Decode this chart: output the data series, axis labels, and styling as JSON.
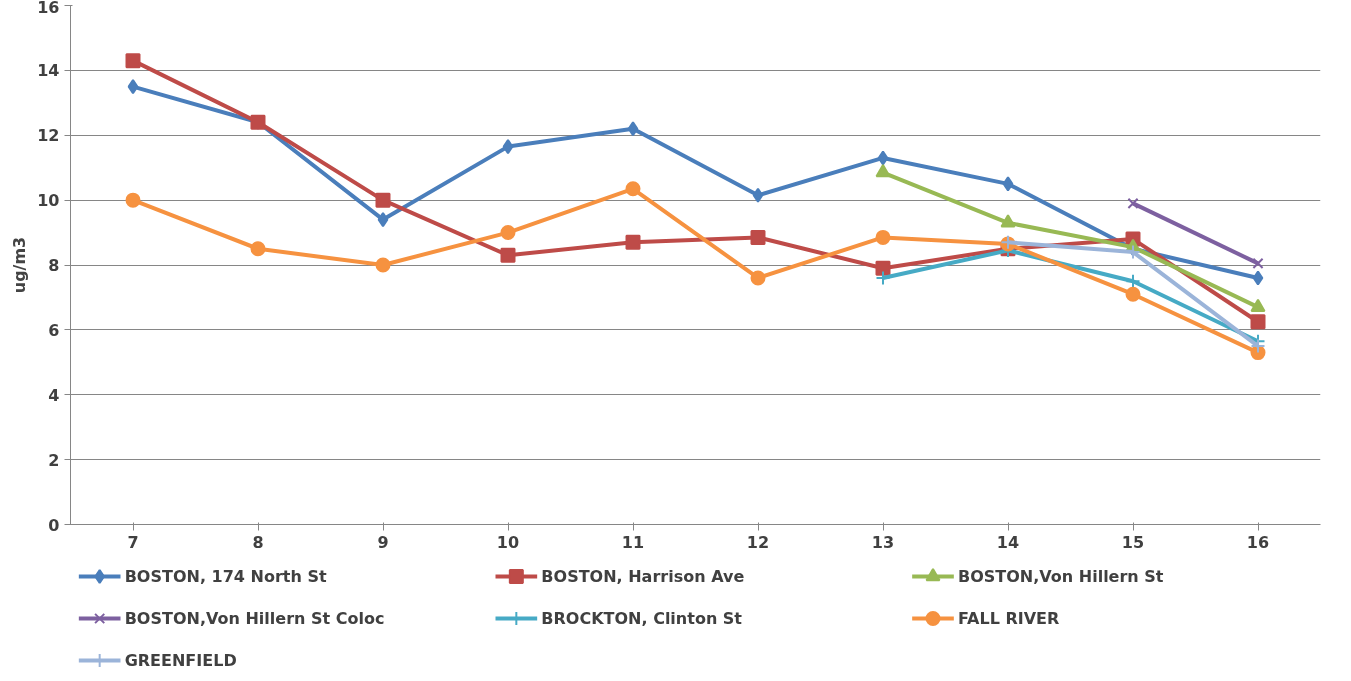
{
  "chart_data": {
    "type": "line",
    "ylabel": "ug/m3",
    "categories": [
      "7",
      "8",
      "9",
      "10",
      "11",
      "12",
      "13",
      "14",
      "15",
      "16"
    ],
    "ylim": [
      0,
      16
    ],
    "yticks": [
      0,
      2,
      4,
      6,
      8,
      10,
      12,
      14,
      16
    ],
    "grid": "y",
    "legend": "bottom",
    "line_style": "solid",
    "series": [
      {
        "name": "BOSTON, 174 North St",
        "color": "#4a7ebb",
        "marker": "diamond",
        "values": [
          13.5,
          12.4,
          9.4,
          11.65,
          12.2,
          10.15,
          11.3,
          10.5,
          8.5,
          7.6
        ]
      },
      {
        "name": "BOSTON, Harrison Ave",
        "color": "#be4b48",
        "marker": "square",
        "values": [
          14.3,
          12.4,
          10.0,
          8.3,
          8.7,
          8.85,
          7.9,
          8.5,
          8.8,
          6.25
        ]
      },
      {
        "name": "BOSTON,Von Hillern St",
        "color": "#98b954",
        "marker": "triangle",
        "values": [
          null,
          null,
          null,
          null,
          null,
          null,
          10.85,
          9.3,
          8.55,
          6.7
        ]
      },
      {
        "name": "BOSTON,Von Hillern St Coloc",
        "color": "#7d60a0",
        "marker": "x",
        "values": [
          null,
          null,
          null,
          null,
          null,
          null,
          null,
          null,
          9.9,
          8.05
        ]
      },
      {
        "name": "BROCKTON, Clinton St",
        "color": "#46aac5",
        "marker": "cross",
        "values": [
          null,
          null,
          null,
          null,
          null,
          null,
          7.6,
          8.45,
          7.5,
          5.65
        ]
      },
      {
        "name": "FALL RIVER",
        "color": "#f69240",
        "marker": "circle",
        "values": [
          10.0,
          8.5,
          8.0,
          9.0,
          10.35,
          7.6,
          8.85,
          8.65,
          7.1,
          5.3
        ]
      },
      {
        "name": "GREENFIELD",
        "color": "#9bb4d9",
        "marker": "cross",
        "values": [
          null,
          null,
          null,
          null,
          null,
          null,
          null,
          8.7,
          8.4,
          5.5
        ]
      }
    ]
  }
}
